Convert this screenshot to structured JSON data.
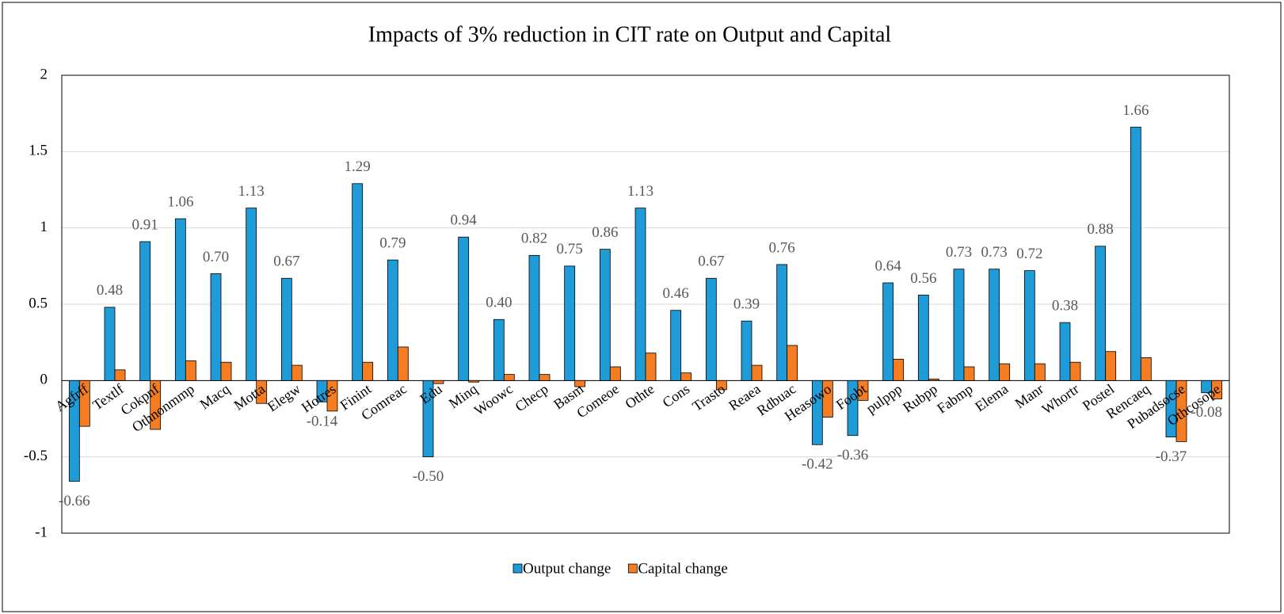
{
  "chart_data": {
    "type": "bar",
    "title": "Impacts of 3% reduction in CIT rate on Output and Capital",
    "categories": [
      "Agfrff",
      "Textlf",
      "Cokpnf",
      "Othnonmmp",
      "Macq",
      "Motta",
      "Elegw",
      "Hotres",
      "Finint",
      "Comreac",
      "Edu",
      "Minq",
      "Woowc",
      "Checp",
      "Basm",
      "Comeoe",
      "Othte",
      "Cons",
      "Trasto",
      "Reaea",
      "Rdbuac",
      "Heasowo",
      "Foobt",
      "pulppp",
      "Rubpp",
      "Fabmp",
      "Elema",
      "Manr",
      "Whortr",
      "Postel",
      "Rencaeq",
      "Pubadsocse",
      "Othcosope"
    ],
    "series": [
      {
        "name": "Output change",
        "color": "#1f9bd7",
        "values": [
          -0.66,
          0.48,
          0.91,
          1.06,
          0.7,
          1.13,
          0.67,
          -0.14,
          1.29,
          0.79,
          -0.5,
          0.94,
          0.4,
          0.82,
          0.75,
          0.86,
          1.13,
          0.46,
          0.67,
          0.39,
          0.76,
          -0.42,
          -0.36,
          0.64,
          0.56,
          0.73,
          0.73,
          0.72,
          0.38,
          0.88,
          1.66,
          -0.37,
          -0.08
        ],
        "value_labels": [
          "-0.66",
          "0.48",
          "0.91",
          "1.06",
          "0.70",
          "1.13",
          "0.67",
          "-0.14",
          "1.29",
          "0.79",
          "-0.50",
          "0.94",
          "0.40",
          "0.82",
          "0.75",
          "0.86",
          "1.13",
          "0.46",
          "0.67",
          "0.39",
          "0.76",
          "-0.42",
          "-0.36",
          "0.64",
          "0.56",
          "0.73",
          "0.73",
          "0.72",
          "0.38",
          "0.88",
          "1.66",
          "-0.37",
          "-0.08"
        ]
      },
      {
        "name": "Capital change",
        "color": "#f57c20",
        "values": [
          -0.3,
          0.07,
          -0.32,
          0.13,
          0.12,
          -0.15,
          0.1,
          -0.2,
          0.12,
          0.22,
          -0.02,
          -0.01,
          0.04,
          0.04,
          -0.04,
          0.09,
          0.18,
          0.05,
          -0.06,
          0.1,
          0.23,
          -0.24,
          -0.13,
          0.14,
          0.01,
          0.09,
          0.11,
          0.11,
          0.12,
          0.19,
          0.15,
          -0.4,
          -0.12
        ]
      }
    ],
    "ylim": [
      -1,
      2
    ],
    "yticks": [
      -1,
      -0.5,
      0,
      0.5,
      1,
      1.5,
      2
    ],
    "grid": true,
    "legend": "bottom"
  }
}
